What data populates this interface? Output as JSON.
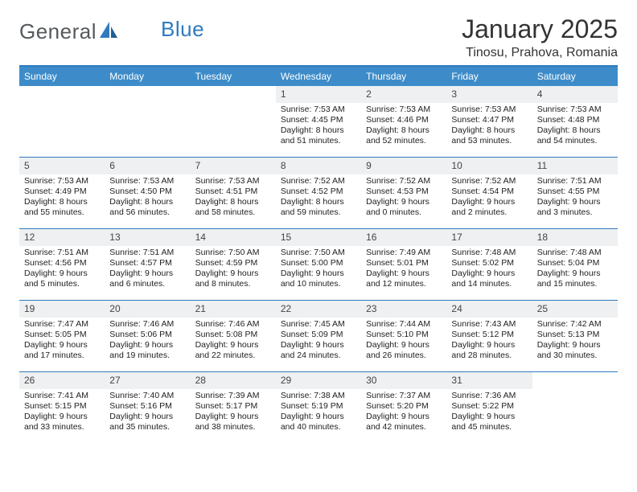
{
  "logo": {
    "text1": "General",
    "text2": "Blue"
  },
  "title": "January 2025",
  "location": "Tinosu, Prahova, Romania",
  "colors": {
    "header_bg": "#3d8cc9",
    "rule": "#2f7bbf",
    "daynum_bg": "#eef0f1",
    "text": "#222222",
    "title_text": "#333333"
  },
  "fonts": {
    "title_pt": 32,
    "location_pt": 16,
    "dow_pt": 12,
    "day_pt": 10.5,
    "daynum_pt": 12
  },
  "dow": [
    "Sunday",
    "Monday",
    "Tuesday",
    "Wednesday",
    "Thursday",
    "Friday",
    "Saturday"
  ],
  "weeks": [
    [
      {
        "n": "",
        "sr": "",
        "ss": "",
        "d1": "",
        "d2": ""
      },
      {
        "n": "",
        "sr": "",
        "ss": "",
        "d1": "",
        "d2": ""
      },
      {
        "n": "",
        "sr": "",
        "ss": "",
        "d1": "",
        "d2": ""
      },
      {
        "n": "1",
        "sr": "Sunrise: 7:53 AM",
        "ss": "Sunset: 4:45 PM",
        "d1": "Daylight: 8 hours",
        "d2": "and 51 minutes."
      },
      {
        "n": "2",
        "sr": "Sunrise: 7:53 AM",
        "ss": "Sunset: 4:46 PM",
        "d1": "Daylight: 8 hours",
        "d2": "and 52 minutes."
      },
      {
        "n": "3",
        "sr": "Sunrise: 7:53 AM",
        "ss": "Sunset: 4:47 PM",
        "d1": "Daylight: 8 hours",
        "d2": "and 53 minutes."
      },
      {
        "n": "4",
        "sr": "Sunrise: 7:53 AM",
        "ss": "Sunset: 4:48 PM",
        "d1": "Daylight: 8 hours",
        "d2": "and 54 minutes."
      }
    ],
    [
      {
        "n": "5",
        "sr": "Sunrise: 7:53 AM",
        "ss": "Sunset: 4:49 PM",
        "d1": "Daylight: 8 hours",
        "d2": "and 55 minutes."
      },
      {
        "n": "6",
        "sr": "Sunrise: 7:53 AM",
        "ss": "Sunset: 4:50 PM",
        "d1": "Daylight: 8 hours",
        "d2": "and 56 minutes."
      },
      {
        "n": "7",
        "sr": "Sunrise: 7:53 AM",
        "ss": "Sunset: 4:51 PM",
        "d1": "Daylight: 8 hours",
        "d2": "and 58 minutes."
      },
      {
        "n": "8",
        "sr": "Sunrise: 7:52 AM",
        "ss": "Sunset: 4:52 PM",
        "d1": "Daylight: 8 hours",
        "d2": "and 59 minutes."
      },
      {
        "n": "9",
        "sr": "Sunrise: 7:52 AM",
        "ss": "Sunset: 4:53 PM",
        "d1": "Daylight: 9 hours",
        "d2": "and 0 minutes."
      },
      {
        "n": "10",
        "sr": "Sunrise: 7:52 AM",
        "ss": "Sunset: 4:54 PM",
        "d1": "Daylight: 9 hours",
        "d2": "and 2 minutes."
      },
      {
        "n": "11",
        "sr": "Sunrise: 7:51 AM",
        "ss": "Sunset: 4:55 PM",
        "d1": "Daylight: 9 hours",
        "d2": "and 3 minutes."
      }
    ],
    [
      {
        "n": "12",
        "sr": "Sunrise: 7:51 AM",
        "ss": "Sunset: 4:56 PM",
        "d1": "Daylight: 9 hours",
        "d2": "and 5 minutes."
      },
      {
        "n": "13",
        "sr": "Sunrise: 7:51 AM",
        "ss": "Sunset: 4:57 PM",
        "d1": "Daylight: 9 hours",
        "d2": "and 6 minutes."
      },
      {
        "n": "14",
        "sr": "Sunrise: 7:50 AM",
        "ss": "Sunset: 4:59 PM",
        "d1": "Daylight: 9 hours",
        "d2": "and 8 minutes."
      },
      {
        "n": "15",
        "sr": "Sunrise: 7:50 AM",
        "ss": "Sunset: 5:00 PM",
        "d1": "Daylight: 9 hours",
        "d2": "and 10 minutes."
      },
      {
        "n": "16",
        "sr": "Sunrise: 7:49 AM",
        "ss": "Sunset: 5:01 PM",
        "d1": "Daylight: 9 hours",
        "d2": "and 12 minutes."
      },
      {
        "n": "17",
        "sr": "Sunrise: 7:48 AM",
        "ss": "Sunset: 5:02 PM",
        "d1": "Daylight: 9 hours",
        "d2": "and 14 minutes."
      },
      {
        "n": "18",
        "sr": "Sunrise: 7:48 AM",
        "ss": "Sunset: 5:04 PM",
        "d1": "Daylight: 9 hours",
        "d2": "and 15 minutes."
      }
    ],
    [
      {
        "n": "19",
        "sr": "Sunrise: 7:47 AM",
        "ss": "Sunset: 5:05 PM",
        "d1": "Daylight: 9 hours",
        "d2": "and 17 minutes."
      },
      {
        "n": "20",
        "sr": "Sunrise: 7:46 AM",
        "ss": "Sunset: 5:06 PM",
        "d1": "Daylight: 9 hours",
        "d2": "and 19 minutes."
      },
      {
        "n": "21",
        "sr": "Sunrise: 7:46 AM",
        "ss": "Sunset: 5:08 PM",
        "d1": "Daylight: 9 hours",
        "d2": "and 22 minutes."
      },
      {
        "n": "22",
        "sr": "Sunrise: 7:45 AM",
        "ss": "Sunset: 5:09 PM",
        "d1": "Daylight: 9 hours",
        "d2": "and 24 minutes."
      },
      {
        "n": "23",
        "sr": "Sunrise: 7:44 AM",
        "ss": "Sunset: 5:10 PM",
        "d1": "Daylight: 9 hours",
        "d2": "and 26 minutes."
      },
      {
        "n": "24",
        "sr": "Sunrise: 7:43 AM",
        "ss": "Sunset: 5:12 PM",
        "d1": "Daylight: 9 hours",
        "d2": "and 28 minutes."
      },
      {
        "n": "25",
        "sr": "Sunrise: 7:42 AM",
        "ss": "Sunset: 5:13 PM",
        "d1": "Daylight: 9 hours",
        "d2": "and 30 minutes."
      }
    ],
    [
      {
        "n": "26",
        "sr": "Sunrise: 7:41 AM",
        "ss": "Sunset: 5:15 PM",
        "d1": "Daylight: 9 hours",
        "d2": "and 33 minutes."
      },
      {
        "n": "27",
        "sr": "Sunrise: 7:40 AM",
        "ss": "Sunset: 5:16 PM",
        "d1": "Daylight: 9 hours",
        "d2": "and 35 minutes."
      },
      {
        "n": "28",
        "sr": "Sunrise: 7:39 AM",
        "ss": "Sunset: 5:17 PM",
        "d1": "Daylight: 9 hours",
        "d2": "and 38 minutes."
      },
      {
        "n": "29",
        "sr": "Sunrise: 7:38 AM",
        "ss": "Sunset: 5:19 PM",
        "d1": "Daylight: 9 hours",
        "d2": "and 40 minutes."
      },
      {
        "n": "30",
        "sr": "Sunrise: 7:37 AM",
        "ss": "Sunset: 5:20 PM",
        "d1": "Daylight: 9 hours",
        "d2": "and 42 minutes."
      },
      {
        "n": "31",
        "sr": "Sunrise: 7:36 AM",
        "ss": "Sunset: 5:22 PM",
        "d1": "Daylight: 9 hours",
        "d2": "and 45 minutes."
      },
      {
        "n": "",
        "sr": "",
        "ss": "",
        "d1": "",
        "d2": ""
      }
    ]
  ]
}
